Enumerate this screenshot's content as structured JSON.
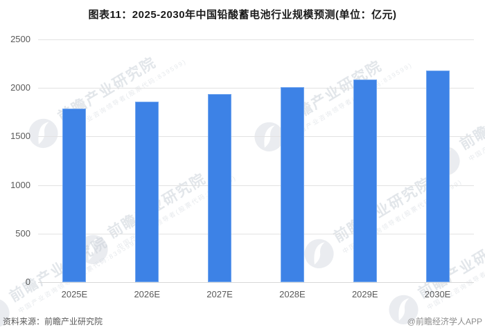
{
  "title": "图表11：2025-2030年中国铅酸蓄电池行业规模预测(单位：亿元)",
  "chart_data": {
    "type": "bar",
    "title": "图表11：2025-2030年中国铅酸蓄电池行业规模预测(单位：亿元)",
    "unit": "亿元",
    "categories": [
      "2025E",
      "2026E",
      "2027E",
      "2028E",
      "2029E",
      "2030E"
    ],
    "values": [
      1785,
      1860,
      1935,
      2010,
      2090,
      2180
    ],
    "ylim": [
      0,
      2500
    ],
    "yticks": [
      0,
      500,
      1000,
      1500,
      2000,
      2500
    ],
    "grid": "horizontal",
    "legend": "none",
    "bar_color": "#3d82e6"
  },
  "footer": {
    "source": "资料来源：前瞻产业研究院",
    "credit": "@前瞻经济学人APP"
  },
  "watermark": {
    "text": "前瞻产业研究院",
    "subtext": "中国产业咨询领导者(股票代码:839599)"
  },
  "colors": {
    "bar": "#3d82e6",
    "grid": "#e2e2e2",
    "axis_text": "#595959",
    "title_text": "#1a1a1a",
    "watermark": "#ccd2d9"
  }
}
